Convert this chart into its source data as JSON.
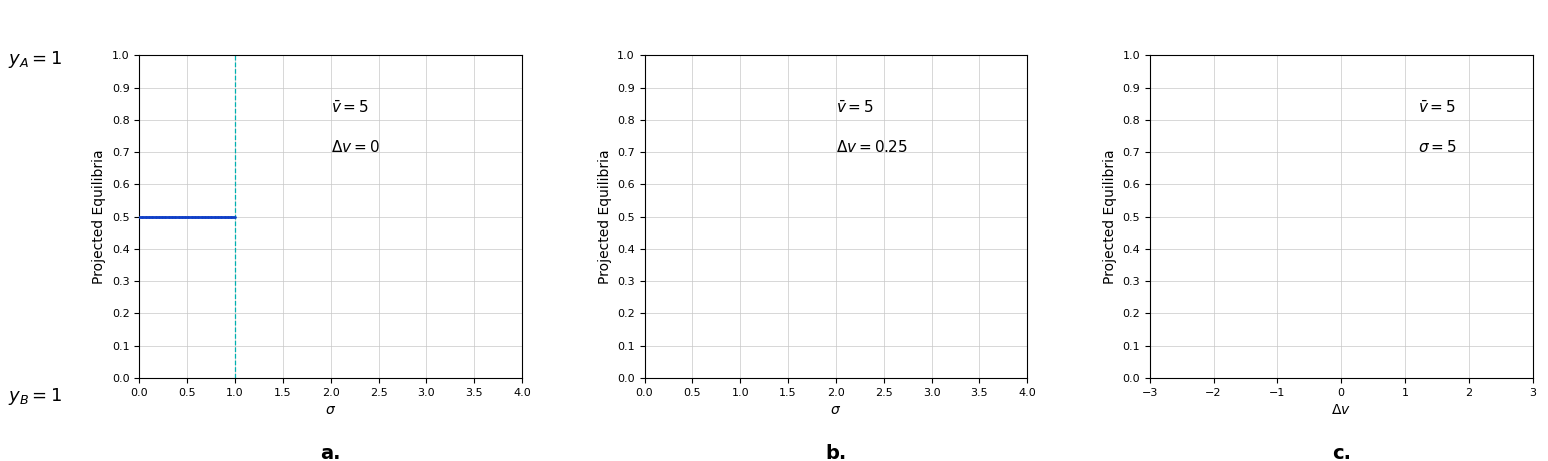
{
  "blue_color": "#1040c8",
  "red_color": "#e0006a",
  "cyan_color": "#00b0b0",
  "background": "#ffffff",
  "grid_color": "#c8c8c8",
  "ylabel": "Projected Equilibria",
  "panel_a": {
    "xlabel": "σ",
    "label": "a.",
    "ann1": "$\\bar{v} = 5$",
    "ann2": "$\\Delta v = 0$",
    "xlim": [
      0,
      4
    ],
    "ylim": [
      0,
      1
    ],
    "xticks": [
      0,
      0.5,
      1.0,
      1.5,
      2.0,
      2.5,
      3.0,
      3.5,
      4.0
    ],
    "yticks": [
      0,
      0.1,
      0.2,
      0.3,
      0.4,
      0.5,
      0.6,
      0.7,
      0.8,
      0.9,
      1.0
    ],
    "bifurcation_point": 1.0
  },
  "panel_b": {
    "xlabel": "σ",
    "label": "b.",
    "ann1": "$\\bar{v} = 5$",
    "ann2": "$\\Delta v = 0.25$",
    "xlim": [
      0,
      4
    ],
    "ylim": [
      0,
      1
    ],
    "xticks": [
      0,
      0.5,
      1.0,
      1.5,
      2.0,
      2.5,
      3.0,
      3.5,
      4.0
    ],
    "yticks": [
      0,
      0.1,
      0.2,
      0.3,
      0.4,
      0.5,
      0.6,
      0.7,
      0.8,
      0.9,
      1.0
    ]
  },
  "panel_c": {
    "xlabel": "$\\Delta v$",
    "label": "c.",
    "ann1": "$\\bar{v} = 5$",
    "ann2": "$\\sigma = 5$",
    "xlim": [
      -3,
      3
    ],
    "ylim": [
      0,
      1
    ],
    "xticks": [
      -3,
      -2,
      -1,
      0,
      1,
      2,
      3
    ],
    "yticks": [
      0,
      0.1,
      0.2,
      0.3,
      0.4,
      0.5,
      0.6,
      0.7,
      0.8,
      0.9,
      1.0
    ]
  },
  "v_bar": 5,
  "dv_b": 0.25,
  "sigma_c": 5,
  "yA_label": "$y_A = 1$",
  "yB_label": "$y_B = 1$",
  "label_fontsize": 10,
  "tick_fontsize": 8,
  "annot_fontsize": 11,
  "outside_fontsize": 13,
  "panel_label_fontsize": 14,
  "markersize": 1.8
}
